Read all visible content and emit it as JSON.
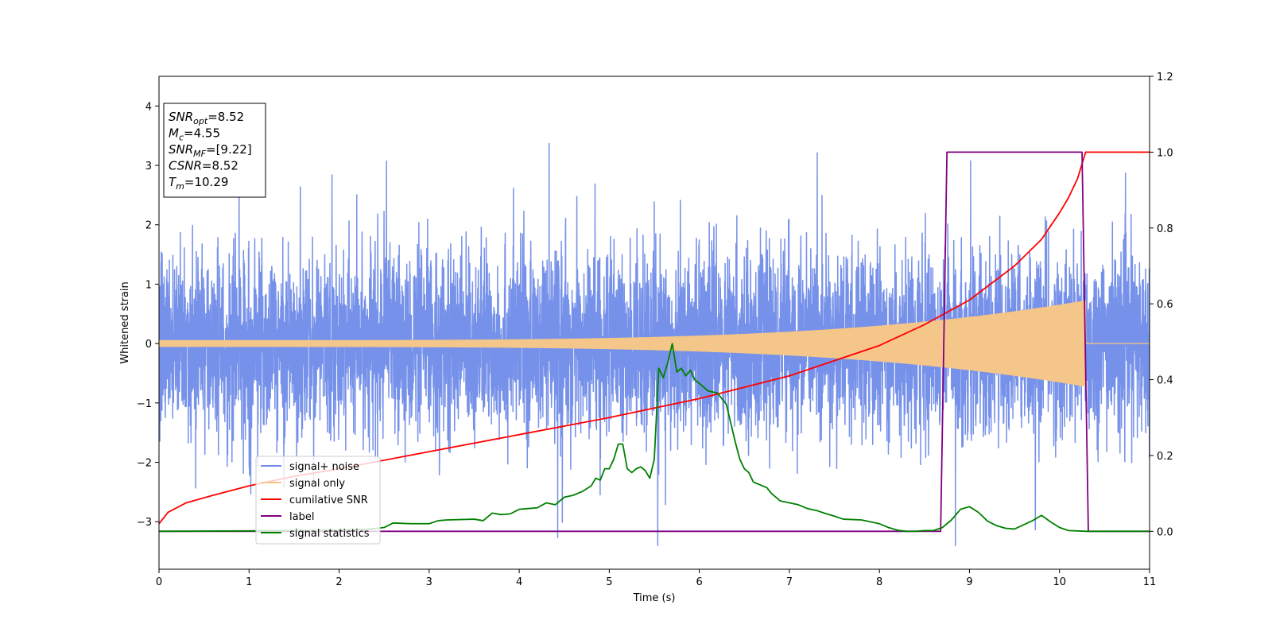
{
  "chart_data": {
    "type": "line",
    "xlabel": "Time (s)",
    "ylabel": "Whitened strain",
    "xlim": [
      0,
      11
    ],
    "ylim": [
      -3.8,
      4.5
    ],
    "y2lim": [
      -0.1,
      1.2
    ],
    "x_ticks": [
      "0",
      "1",
      "2",
      "3",
      "4",
      "5",
      "6",
      "7",
      "8",
      "9",
      "10",
      "11"
    ],
    "y_ticks": [
      "−3",
      "−2",
      "−1",
      "0",
      "1",
      "2",
      "3",
      "4"
    ],
    "y2_ticks": [
      "0.0",
      "0.2",
      "0.4",
      "0.6",
      "0.8",
      "1.0",
      "1.2"
    ],
    "annotation": {
      "lines": [
        {
          "base": "SNR",
          "sub": "opt",
          "value": "=8.52"
        },
        {
          "base": "M",
          "sub": "c",
          "value": "=4.55"
        },
        {
          "base": "SNR",
          "sub": "MF",
          "value": "=[9.22]"
        },
        {
          "base": "CSNR",
          "sub": "",
          "value": "=8.52"
        },
        {
          "base": "T",
          "sub": "m",
          "value": "=10.29"
        }
      ]
    },
    "series": [
      {
        "name": "signal+ noise",
        "color": "#6f8be8",
        "axis": "left",
        "kind": "noise",
        "noise_std": 0.75,
        "merger_time": 10.29
      },
      {
        "name": "signal only",
        "color": "#f5c689",
        "axis": "left",
        "kind": "chirp",
        "merger_time": 10.29,
        "amplitude_start": 0.05,
        "amplitude_end": 0.72
      },
      {
        "name": "cumilative SNR",
        "color": "#ff0000",
        "axis": "right",
        "kind": "line",
        "x": [
          0,
          0.1,
          0.3,
          0.6,
          1,
          1.5,
          2,
          3,
          4,
          5,
          6,
          7,
          8,
          8.5,
          9,
          9.5,
          9.8,
          10,
          10.1,
          10.2,
          10.29,
          11
        ],
        "y": [
          0.02,
          0.05,
          0.075,
          0.095,
          0.12,
          0.145,
          0.165,
          0.21,
          0.255,
          0.3,
          0.35,
          0.41,
          0.49,
          0.545,
          0.61,
          0.7,
          0.77,
          0.84,
          0.88,
          0.93,
          1.0,
          1.0
        ]
      },
      {
        "name": "label",
        "color": "#800080",
        "axis": "right",
        "kind": "line",
        "x": [
          0,
          8.68,
          8.75,
          10.25,
          10.32,
          11
        ],
        "y": [
          0,
          0,
          1,
          1,
          0,
          0
        ]
      },
      {
        "name": "signal statistics",
        "color": "#008000",
        "axis": "right",
        "kind": "line",
        "x": [
          0,
          1,
          2,
          2.3,
          2.5,
          2.6,
          2.8,
          3,
          3.1,
          3.2,
          3.5,
          3.6,
          3.7,
          3.8,
          3.9,
          4,
          4.1,
          4.2,
          4.3,
          4.4,
          4.5,
          4.6,
          4.7,
          4.8,
          4.85,
          4.9,
          4.95,
          5,
          5.05,
          5.1,
          5.15,
          5.2,
          5.25,
          5.3,
          5.35,
          5.4,
          5.45,
          5.5,
          5.55,
          5.6,
          5.65,
          5.7,
          5.75,
          5.8,
          5.85,
          5.9,
          5.95,
          6,
          6.1,
          6.2,
          6.3,
          6.35,
          6.4,
          6.45,
          6.5,
          6.55,
          6.6,
          6.7,
          6.75,
          6.8,
          6.9,
          7,
          7.1,
          7.2,
          7.3,
          7.4,
          7.5,
          7.6,
          7.8,
          8,
          8.1,
          8.2,
          8.3,
          8.4,
          8.5,
          8.6,
          8.7,
          8.8,
          8.9,
          9,
          9.1,
          9.2,
          9.3,
          9.4,
          9.5,
          9.6,
          9.7,
          9.8,
          9.9,
          10,
          10.1,
          10.3,
          11
        ],
        "y": [
          0,
          0.001,
          0.003,
          0.005,
          0.01,
          0.022,
          0.02,
          0.02,
          0.028,
          0.03,
          0.032,
          0.028,
          0.048,
          0.044,
          0.046,
          0.058,
          0.06,
          0.062,
          0.075,
          0.07,
          0.09,
          0.095,
          0.105,
          0.12,
          0.14,
          0.135,
          0.165,
          0.165,
          0.19,
          0.23,
          0.23,
          0.165,
          0.155,
          0.165,
          0.17,
          0.16,
          0.14,
          0.19,
          0.43,
          0.405,
          0.445,
          0.495,
          0.42,
          0.43,
          0.41,
          0.425,
          0.4,
          0.39,
          0.37,
          0.365,
          0.335,
          0.285,
          0.235,
          0.19,
          0.165,
          0.155,
          0.13,
          0.12,
          0.115,
          0.1,
          0.08,
          0.075,
          0.07,
          0.06,
          0.055,
          0.047,
          0.04,
          0.032,
          0.03,
          0.02,
          0.01,
          0.003,
          0.0,
          0.0,
          0.002,
          0.002,
          0.01,
          0.03,
          0.058,
          0.065,
          0.05,
          0.027,
          0.015,
          0.008,
          0.006,
          0.017,
          0.028,
          0.042,
          0.025,
          0.01,
          0.002,
          0.0,
          0.0
        ]
      }
    ],
    "legend": {
      "position": "lower-left"
    }
  }
}
